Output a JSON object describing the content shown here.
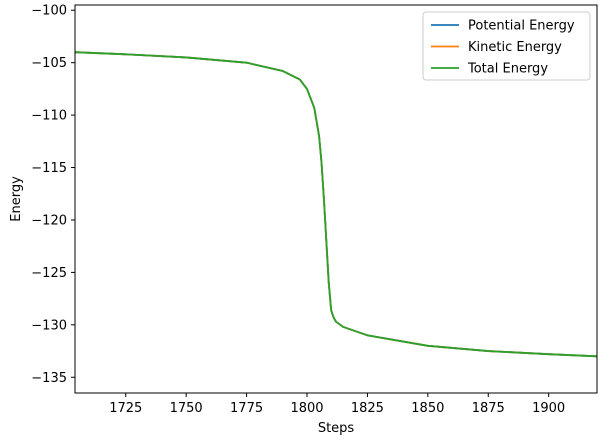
{
  "chart_data": {
    "type": "line",
    "xlabel": "Steps",
    "ylabel": "Energy",
    "xlim": [
      1704,
      1920
    ],
    "ylim": [
      -136.5,
      -99.5
    ],
    "xticks": [
      1725,
      1750,
      1775,
      1800,
      1825,
      1850,
      1875,
      1900
    ],
    "yticks": [
      -100,
      -105,
      -110,
      -115,
      -120,
      -125,
      -130,
      -135
    ],
    "grid": false,
    "legend_placement": "top-right",
    "series": [
      {
        "name": "Potential Energy",
        "color": "#1f77b4",
        "x": [
          1704,
          1725,
          1750,
          1775,
          1790,
          1797,
          1800,
          1803,
          1805,
          1806,
          1807,
          1808,
          1809,
          1810,
          1811,
          1812,
          1815,
          1825,
          1850,
          1875,
          1900,
          1920
        ],
        "y": [
          -104.0,
          -104.2,
          -104.5,
          -105.0,
          -105.8,
          -106.6,
          -107.5,
          -109.3,
          -112.0,
          -114.5,
          -118.0,
          -122.0,
          -126.0,
          -128.6,
          -129.3,
          -129.7,
          -130.2,
          -131.0,
          -132.0,
          -132.5,
          -132.8,
          -133.0
        ]
      },
      {
        "name": "Kinetic Energy",
        "color": "#ff7f0e",
        "x": [
          1704,
          1725,
          1750,
          1775,
          1790,
          1797,
          1800,
          1803,
          1805,
          1806,
          1807,
          1808,
          1809,
          1810,
          1811,
          1812,
          1815,
          1825,
          1850,
          1875,
          1900,
          1920
        ],
        "y": [
          -104.0,
          -104.2,
          -104.5,
          -105.0,
          -105.8,
          -106.6,
          -107.5,
          -109.3,
          -112.0,
          -114.5,
          -118.0,
          -122.0,
          -126.0,
          -128.6,
          -129.3,
          -129.7,
          -130.2,
          -131.0,
          -132.0,
          -132.5,
          -132.8,
          -133.0
        ]
      },
      {
        "name": "Total Energy",
        "color": "#2ca02c",
        "x": [
          1704,
          1725,
          1750,
          1775,
          1790,
          1797,
          1800,
          1803,
          1805,
          1806,
          1807,
          1808,
          1809,
          1810,
          1811,
          1812,
          1815,
          1825,
          1850,
          1875,
          1900,
          1920
        ],
        "y": [
          -104.0,
          -104.2,
          -104.5,
          -105.0,
          -105.8,
          -106.6,
          -107.5,
          -109.3,
          -112.0,
          -114.5,
          -118.0,
          -122.0,
          -126.0,
          -128.6,
          -129.3,
          -129.7,
          -130.2,
          -131.0,
          -132.0,
          -132.5,
          -132.8,
          -133.0
        ]
      }
    ]
  }
}
